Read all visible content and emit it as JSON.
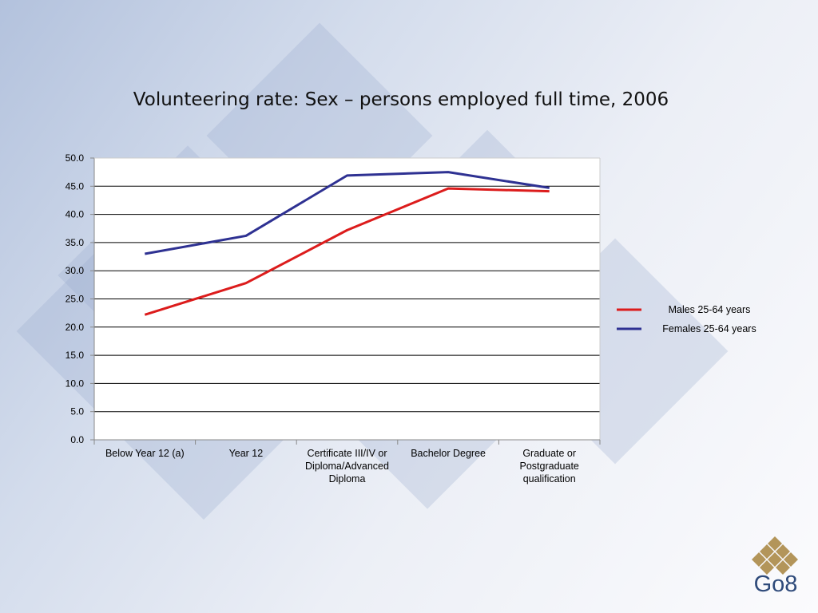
{
  "slide": {
    "title": "Volunteering rate: Sex – persons employed full time, 2006",
    "logo_text": "Go8"
  },
  "colors": {
    "males": "#dc1c1c",
    "females": "#2e3192",
    "logo_gold": "#b3955a",
    "logo_text": "#2e4a7a"
  },
  "chart_data": {
    "type": "line",
    "title": "Volunteering rate: Sex – persons employed full time, 2006",
    "xlabel": "",
    "ylabel": "",
    "categories": [
      [
        "Below Year 12 (a)"
      ],
      [
        "Year 12"
      ],
      [
        "Certificate III/IV or",
        "Diploma/Advanced",
        "Diploma"
      ],
      [
        "Bachelor Degree"
      ],
      [
        "Graduate or",
        "Postgraduate",
        "qualification"
      ]
    ],
    "series": [
      {
        "name": "Males 25-64 years",
        "values": [
          22.2,
          27.8,
          37.2,
          44.6,
          44.1
        ]
      },
      {
        "name": "Females  25-64 years",
        "values": [
          33.0,
          36.2,
          46.9,
          47.5,
          44.7
        ]
      }
    ],
    "ylim": [
      0,
      50
    ],
    "yticks": [
      "0.0",
      "5.0",
      "10.0",
      "15.0",
      "20.0",
      "25.0",
      "30.0",
      "35.0",
      "40.0",
      "45.0",
      "50.0"
    ],
    "grid": true,
    "legend_position": "right"
  }
}
